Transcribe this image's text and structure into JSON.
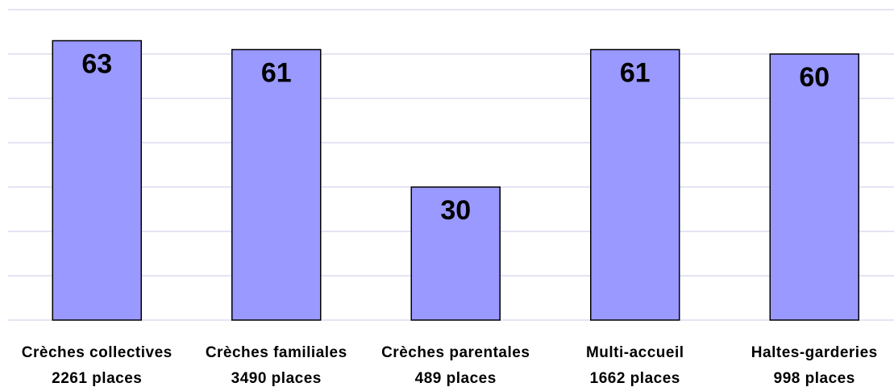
{
  "chart_data": {
    "type": "bar",
    "categories": [
      [
        "Crèches collectives",
        "2261 places"
      ],
      [
        "Crèches familiales",
        "3490 places"
      ],
      [
        "Crèches parentales",
        "489 places"
      ],
      [
        "Multi-accueil",
        "1662 places"
      ],
      [
        "Haltes-garderies",
        "998 places"
      ]
    ],
    "values": [
      63,
      61,
      30,
      61,
      60
    ],
    "color": "#9999ff",
    "ylim": [
      0,
      70
    ],
    "yticks": [
      0,
      10,
      20,
      30,
      40,
      50,
      60,
      70
    ],
    "grid": true
  }
}
